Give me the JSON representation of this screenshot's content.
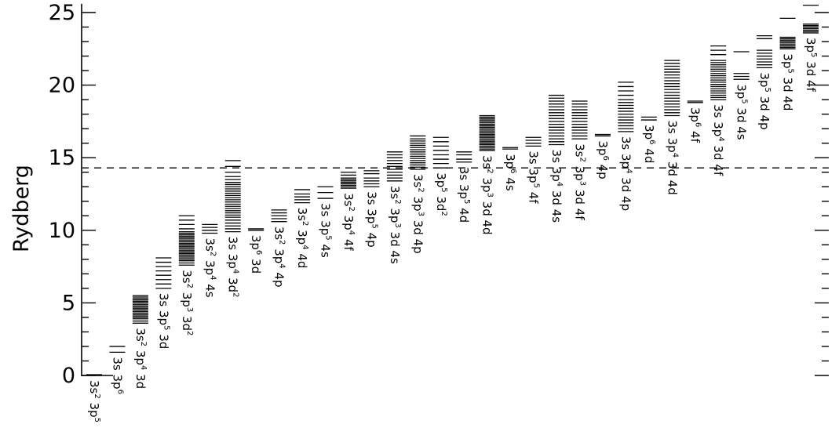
{
  "chart_data": {
    "type": "level-diagram",
    "ylabel": "Rydberg",
    "ylim": [
      -0.3,
      25.6
    ],
    "yticks": [
      0,
      5,
      10,
      15,
      20,
      25
    ],
    "ionization_limit": 14.3,
    "configurations": [
      {
        "label": [
          [
            "3s",
            "2"
          ],
          [
            " 3p",
            "5"
          ]
        ],
        "levels": [
          0.0,
          0.05
        ]
      },
      {
        "label": [
          [
            "3s",
            ""
          ],
          [
            " 3p",
            "6"
          ]
        ],
        "levels": [
          1.6,
          2.0
        ]
      },
      {
        "label": [
          [
            "3s",
            "2"
          ],
          [
            " 3p",
            "4"
          ],
          [
            " 3d",
            ""
          ]
        ],
        "levels": [
          3.6,
          3.75,
          3.9,
          4.0,
          4.1,
          4.2,
          4.3,
          4.4,
          4.5,
          4.6,
          4.7,
          4.8,
          4.9,
          5.0,
          5.1,
          5.2,
          5.3,
          5.4,
          5.5
        ]
      },
      {
        "label": [
          [
            "3s",
            ""
          ],
          [
            " 3p",
            "5"
          ],
          [
            " 3d",
            ""
          ]
        ],
        "levels": [
          6.0,
          6.3,
          6.6,
          6.9,
          7.2,
          7.5,
          7.8,
          8.1
        ]
      },
      {
        "label": [
          [
            "3s",
            "2"
          ],
          [
            " 3p",
            "3"
          ],
          [
            " 3d",
            "2"
          ]
        ],
        "levels": [
          7.6,
          7.75,
          7.9,
          8.0,
          8.1,
          8.2,
          8.3,
          8.4,
          8.5,
          8.6,
          8.7,
          8.8,
          8.9,
          9.0,
          9.1,
          9.2,
          9.3,
          9.4,
          9.5,
          9.6,
          9.7,
          9.8,
          9.9,
          10.1,
          10.4,
          10.7,
          11.0
        ]
      },
      {
        "label": [
          [
            "3s",
            "2"
          ],
          [
            " 3p",
            "4"
          ],
          [
            " 4s",
            ""
          ]
        ],
        "levels": [
          9.8,
          10.0,
          10.2,
          10.4
        ]
      },
      {
        "label": [
          [
            "3s",
            ""
          ],
          [
            " 3p",
            "4"
          ],
          [
            " 3d",
            "2"
          ]
        ],
        "levels": [
          9.9,
          10.1,
          10.3,
          10.5,
          10.7,
          10.9,
          11.05,
          11.2,
          11.35,
          11.5,
          11.65,
          11.8,
          11.95,
          12.1,
          12.25,
          12.4,
          12.55,
          12.7,
          12.85,
          13.0,
          13.15,
          13.3,
          13.5,
          13.7,
          14.0,
          14.4,
          14.8
        ]
      },
      {
        "label": [
          [
            "3p",
            "6"
          ],
          [
            " 3d",
            ""
          ]
        ],
        "levels": [
          10.0,
          10.1
        ]
      },
      {
        "label": [
          [
            "3s",
            "2"
          ],
          [
            " 3p",
            "4"
          ],
          [
            " 4p",
            ""
          ]
        ],
        "levels": [
          10.6,
          10.8,
          11.0,
          11.2,
          11.4
        ]
      },
      {
        "label": [
          [
            "3s",
            "2"
          ],
          [
            " 3p",
            "4"
          ],
          [
            " 4d",
            ""
          ]
        ],
        "levels": [
          11.9,
          12.1,
          12.3,
          12.5,
          12.8
        ]
      },
      {
        "label": [
          [
            "3s",
            ""
          ],
          [
            " 3p",
            "5"
          ],
          [
            " 4s",
            ""
          ]
        ],
        "levels": [
          12.2,
          12.6,
          13.0
        ]
      },
      {
        "label": [
          [
            "3s",
            "2"
          ],
          [
            " 3p",
            "4"
          ],
          [
            " 4f",
            ""
          ]
        ],
        "levels": [
          12.9,
          13.0,
          13.1,
          13.2,
          13.3,
          13.4,
          13.5,
          13.6,
          13.8,
          14.0
        ]
      },
      {
        "label": [
          [
            "3s",
            ""
          ],
          [
            " 3p",
            "5"
          ],
          [
            " 4p",
            ""
          ]
        ],
        "levels": [
          13.0,
          13.2,
          13.4,
          13.6,
          13.9,
          14.1
        ]
      },
      {
        "label": [
          [
            "3s",
            "2"
          ],
          [
            " 3p",
            "3"
          ],
          [
            " 3d",
            ""
          ],
          [
            " 4s",
            ""
          ]
        ],
        "levels": [
          13.4,
          13.6,
          13.8,
          14.0,
          14.2,
          14.4,
          14.6,
          14.8,
          15.0,
          15.2,
          15.4
        ]
      },
      {
        "label": [
          [
            "3s",
            "2"
          ],
          [
            " 3p",
            "3"
          ],
          [
            " 3d",
            ""
          ],
          [
            " 4p",
            ""
          ]
        ],
        "levels": [
          14.2,
          14.35,
          14.5,
          14.65,
          14.8,
          14.95,
          15.1,
          15.25,
          15.4,
          15.55,
          15.7,
          15.85,
          16.0,
          16.15,
          16.3,
          16.5
        ]
      },
      {
        "label": [
          [
            "3p",
            "5"
          ],
          [
            " 3d",
            "2"
          ]
        ],
        "levels": [
          14.3,
          14.6,
          14.9,
          15.2,
          15.5,
          15.8,
          16.1,
          16.4
        ]
      },
      {
        "label": [
          [
            "3s",
            ""
          ],
          [
            " 3p",
            "5"
          ],
          [
            " 4d",
            ""
          ]
        ],
        "levels": [
          14.7,
          14.9,
          15.2,
          15.4
        ]
      },
      {
        "label": [
          [
            "3s",
            "2"
          ],
          [
            " 3p",
            "3"
          ],
          [
            " 3d",
            ""
          ],
          [
            " 4d",
            ""
          ]
        ],
        "levels": [
          15.5,
          15.6,
          15.7,
          15.8,
          15.9,
          16.0,
          16.1,
          16.2,
          16.3,
          16.4,
          16.5,
          16.6,
          16.7,
          16.8,
          16.9,
          17.0,
          17.1,
          17.2,
          17.3,
          17.4,
          17.5,
          17.6,
          17.7,
          17.8,
          17.9
        ]
      },
      {
        "label": [
          [
            "3p",
            "6"
          ],
          [
            " 4s",
            ""
          ]
        ],
        "levels": [
          15.6,
          15.7
        ]
      },
      {
        "label": [
          [
            "3s",
            ""
          ],
          [
            " 3p",
            "5"
          ],
          [
            " 4f",
            ""
          ]
        ],
        "levels": [
          15.8,
          16.0,
          16.2,
          16.4
        ]
      },
      {
        "label": [
          [
            "3s",
            ""
          ],
          [
            " 3p",
            "4"
          ],
          [
            " 3d",
            ""
          ],
          [
            " 4s",
            ""
          ]
        ],
        "levels": [
          15.9,
          16.1,
          16.3,
          16.5,
          16.7,
          16.9,
          17.1,
          17.3,
          17.5,
          17.7,
          17.9,
          18.1,
          18.3,
          18.5,
          18.7,
          18.9,
          19.1,
          19.3
        ]
      },
      {
        "label": [
          [
            "3s",
            "2"
          ],
          [
            " 3p",
            "3"
          ],
          [
            " 3d",
            ""
          ],
          [
            " 4f",
            ""
          ]
        ],
        "levels": [
          16.3,
          16.5,
          16.7,
          16.9,
          17.1,
          17.3,
          17.5,
          17.7,
          17.9,
          18.1,
          18.3,
          18.5,
          18.7,
          18.9
        ]
      },
      {
        "label": [
          [
            "3p",
            "6"
          ],
          [
            " 4p",
            ""
          ]
        ],
        "levels": [
          16.5,
          16.6
        ]
      },
      {
        "label": [
          [
            "3s",
            ""
          ],
          [
            " 3p",
            "4"
          ],
          [
            " 3d",
            ""
          ],
          [
            " 4p",
            ""
          ]
        ],
        "levels": [
          16.8,
          17.0,
          17.2,
          17.4,
          17.6,
          17.8,
          18.0,
          18.2,
          18.4,
          18.6,
          18.8,
          19.0,
          19.3,
          19.6,
          19.9,
          20.2
        ]
      },
      {
        "label": [
          [
            "3p",
            "6"
          ],
          [
            " 4d",
            ""
          ]
        ],
        "levels": [
          17.6,
          17.8
        ]
      },
      {
        "label": [
          [
            "3s",
            ""
          ],
          [
            " 3p",
            "4"
          ],
          [
            " 3d",
            ""
          ],
          [
            " 4d",
            ""
          ]
        ],
        "levels": [
          17.9,
          18.1,
          18.3,
          18.5,
          18.7,
          18.9,
          19.1,
          19.3,
          19.5,
          19.7,
          19.9,
          20.1,
          20.3,
          20.5,
          20.7,
          20.9,
          21.1,
          21.3,
          21.5,
          21.7
        ]
      },
      {
        "label": [
          [
            "3p",
            "6"
          ],
          [
            " 4f",
            ""
          ]
        ],
        "levels": [
          18.8,
          18.9
        ]
      },
      {
        "label": [
          [
            "3s",
            ""
          ],
          [
            " 3p",
            "4"
          ],
          [
            " 3d",
            ""
          ],
          [
            " 4f",
            ""
          ]
        ],
        "levels": [
          19.0,
          19.15,
          19.3,
          19.45,
          19.6,
          19.75,
          19.9,
          20.05,
          20.2,
          20.35,
          20.5,
          20.65,
          20.8,
          20.95,
          21.1,
          21.25,
          21.4,
          21.55,
          21.7,
          22.1,
          22.4,
          22.7
        ]
      },
      {
        "label": [
          [
            "3p",
            "5"
          ],
          [
            " 3d",
            ""
          ],
          [
            " 4s",
            ""
          ]
        ],
        "levels": [
          20.4,
          20.6,
          20.8,
          22.3
        ]
      },
      {
        "label": [
          [
            "3p",
            "5"
          ],
          [
            " 3d",
            ""
          ],
          [
            " 4p",
            ""
          ]
        ],
        "levels": [
          21.2,
          21.4,
          21.6,
          21.8,
          22.0,
          22.2,
          22.4,
          23.2,
          23.4
        ]
      },
      {
        "label": [
          [
            "3p",
            "5"
          ],
          [
            " 3d",
            ""
          ],
          [
            " 4d",
            ""
          ]
        ],
        "levels": [
          22.5,
          22.6,
          22.7,
          22.8,
          22.9,
          23.0,
          23.1,
          23.2,
          23.3,
          24.6
        ]
      },
      {
        "label": [
          [
            "3p",
            "5"
          ],
          [
            " 3d",
            ""
          ],
          [
            " 4f",
            ""
          ]
        ],
        "levels": [
          23.6,
          23.7,
          23.8,
          23.9,
          24.0,
          24.1,
          24.2,
          25.5
        ]
      }
    ]
  }
}
